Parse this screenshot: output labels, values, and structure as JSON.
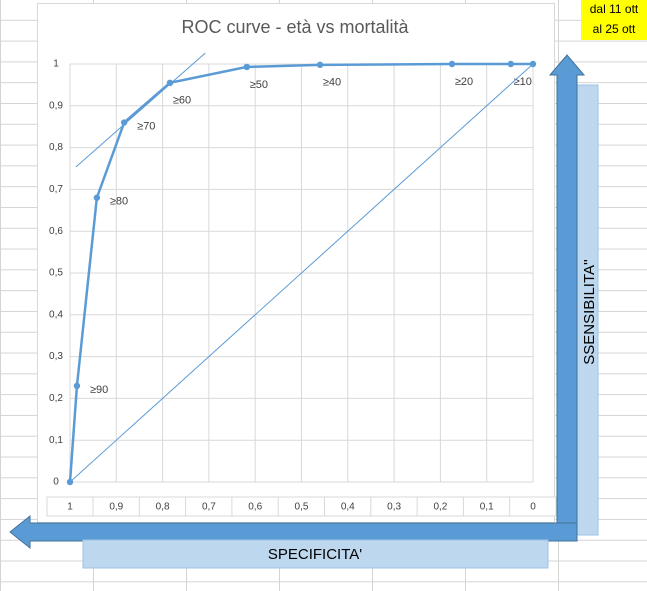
{
  "sheet": {
    "date_from": "dal 11 ott",
    "date_to": "al 25 ott",
    "y_label": "SSENSIBILITA''",
    "x_label": "SPECIFICITA'"
  },
  "chart_data": {
    "type": "line",
    "title": "ROC curve - età vs mortalità",
    "xlim": [
      1,
      0
    ],
    "ylim": [
      0,
      1
    ],
    "xticks": [
      1,
      {
        "value": 0.9,
        "label": "0,9"
      },
      {
        "value": 0.8,
        "label": "0,8"
      },
      {
        "value": 0.7,
        "label": "0,7"
      },
      {
        "value": 0.6,
        "label": "0,6"
      },
      {
        "value": 0.5,
        "label": "0,5"
      },
      {
        "value": 0.4,
        "label": "0,4"
      },
      {
        "value": 0.3,
        "label": "0,3"
      },
      {
        "value": 0.2,
        "label": "0,2"
      },
      {
        "value": 0.1,
        "label": "0,1"
      },
      0
    ],
    "yticks": [
      0,
      {
        "value": 0.1,
        "label": "0,1"
      },
      {
        "value": 0.2,
        "label": "0,2"
      },
      {
        "value": 0.3,
        "label": "0,3"
      },
      {
        "value": 0.4,
        "label": "0,4"
      },
      {
        "value": 0.5,
        "label": "0,5"
      },
      {
        "value": 0.6,
        "label": "0,6"
      },
      {
        "value": 0.7,
        "label": "0,7"
      },
      {
        "value": 0.8,
        "label": "0,8"
      },
      {
        "value": 0.9,
        "label": "0,9"
      },
      1
    ],
    "grid": true,
    "series": [
      {
        "color": "#5b9bd5",
        "x": [
          1,
          0.985,
          0.942,
          0.883,
          0.784,
          0.618,
          0.46,
          0.175,
          0.048,
          0
        ],
        "values": [
          0,
          0.23,
          0.68,
          0.86,
          0.955,
          0.993,
          0.998,
          1,
          1,
          1
        ],
        "point_labels": [
          null,
          "≥90",
          "≥80",
          "≥70",
          "≥60",
          "≥50",
          "≥40",
          "≥20",
          "≥10",
          null
        ],
        "markers": true
      },
      {
        "color": "#5b9bd5",
        "x": [
          1,
          0
        ],
        "values": [
          0,
          1
        ],
        "markers": false
      },
      {
        "color": "#5b9bd5",
        "x": [
          0.987,
          0.708
        ],
        "values": [
          0.754,
          1.026
        ],
        "markers": false
      }
    ]
  }
}
